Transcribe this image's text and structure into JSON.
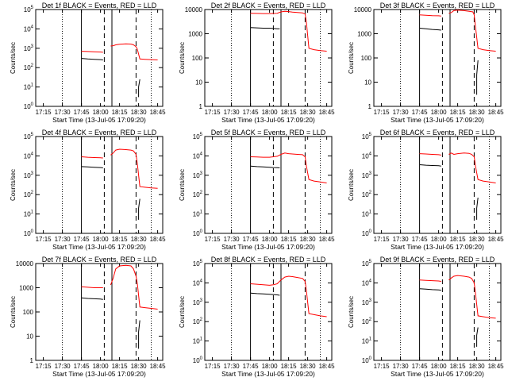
{
  "xlabel": "Start Time (13-Jul-05 17:09:20)",
  "ylabel": "Counts/sec",
  "x_ticks": [
    "17:15",
    "17:30",
    "17:45",
    "18:00",
    "18:15",
    "18:30",
    "18:45"
  ],
  "colors": {
    "events": "#000000",
    "lld": "#ff0000",
    "axes": "#000000"
  },
  "chart_data": [
    {
      "type": "line",
      "title": "Det 1f BLACK = Events, RED = LLD",
      "ylim": [
        1,
        100000
      ],
      "ytick_style": "exp",
      "y_ticks": [
        "10^0",
        "10^1",
        "10^2",
        "10^3",
        "10^4",
        "10^5"
      ],
      "markers": {
        "dotted": [
          "17:30",
          "18:40"
        ],
        "solid": [
          "17:45",
          "18:09"
        ],
        "dashed": [
          "18:03",
          "18:28"
        ]
      },
      "series": [
        {
          "role": "events",
          "x": [
            "17:45",
            "17:50",
            "17:55",
            "18:00",
            "18:02"
          ],
          "y": [
            300,
            280,
            270,
            260,
            250
          ]
        },
        {
          "role": "events",
          "x": [
            "18:30",
            "18:30",
            "18:31"
          ],
          "y": [
            3,
            10,
            25
          ]
        },
        {
          "role": "lld",
          "x": [
            "17:45",
            "17:50",
            "17:55",
            "18:00",
            "18:02"
          ],
          "y": [
            700,
            680,
            660,
            640,
            620
          ]
        },
        {
          "role": "lld",
          "x": [
            "18:08",
            "18:10",
            "18:12",
            "18:15",
            "18:20",
            "18:24",
            "18:26",
            "18:28",
            "18:29",
            "18:31",
            "18:35",
            "18:40",
            "18:45"
          ],
          "y": [
            1300,
            1350,
            1500,
            1600,
            1700,
            1650,
            1500,
            1200,
            900,
            280,
            270,
            260,
            250
          ]
        }
      ]
    },
    {
      "type": "line",
      "title": "Det 2f BLACK = Events, RED = LLD",
      "ylim": [
        1,
        10000
      ],
      "ytick_style": "plain",
      "y_ticks": [
        "1",
        "10",
        "100",
        "1000",
        "10000"
      ],
      "markers": {
        "dotted": [
          "17:30",
          "18:40"
        ],
        "solid": [
          "17:45",
          "18:09"
        ],
        "dashed": [
          "18:03",
          "18:28"
        ]
      },
      "series": [
        {
          "role": "events",
          "x": [
            "17:45",
            "17:50",
            "17:55",
            "18:00",
            "18:03",
            "18:06",
            "18:08"
          ],
          "y": [
            1800,
            1750,
            1700,
            1700,
            1650,
            1600,
            1600
          ]
        },
        {
          "role": "lld",
          "x": [
            "17:45",
            "17:50",
            "17:55",
            "18:00",
            "18:03",
            "18:06",
            "18:09",
            "18:12",
            "18:15",
            "18:18",
            "18:22",
            "18:26",
            "18:28",
            "18:29",
            "18:31",
            "18:35",
            "18:40",
            "18:45"
          ],
          "y": [
            7000,
            6900,
            6800,
            6800,
            6900,
            7000,
            8000,
            8500,
            8200,
            7800,
            7500,
            7300,
            6500,
            3000,
            250,
            220,
            200,
            190
          ]
        }
      ]
    },
    {
      "type": "line",
      "title": "Det 3f BLACK = Events, RED = LLD",
      "ylim": [
        1,
        10000
      ],
      "ytick_style": "plain",
      "y_ticks": [
        "1",
        "10",
        "100",
        "1000",
        "10000"
      ],
      "markers": {
        "dotted": [
          "17:30",
          "18:40"
        ],
        "solid": [
          "17:45",
          "18:09"
        ],
        "dashed": [
          "18:03",
          "18:28"
        ]
      },
      "series": [
        {
          "role": "events",
          "x": [
            "17:45",
            "17:50",
            "17:55",
            "18:00",
            "18:02"
          ],
          "y": [
            1700,
            1600,
            1500,
            1450,
            1400
          ]
        },
        {
          "role": "events",
          "x": [
            "18:30",
            "18:30",
            "18:31"
          ],
          "y": [
            3,
            20,
            80
          ]
        },
        {
          "role": "lld",
          "x": [
            "17:45",
            "17:50",
            "17:55",
            "18:00",
            "18:02"
          ],
          "y": [
            6000,
            5800,
            5600,
            5500,
            5400
          ]
        },
        {
          "role": "lld",
          "x": [
            "18:08",
            "18:10",
            "18:12",
            "18:15",
            "18:20",
            "18:24",
            "18:27",
            "18:28",
            "18:29",
            "18:31",
            "18:35",
            "18:40",
            "18:45"
          ],
          "y": [
            7000,
            7500,
            9000,
            9500,
            9000,
            8500,
            8000,
            6000,
            2000,
            250,
            220,
            200,
            190
          ]
        }
      ]
    },
    {
      "type": "line",
      "title": "Det 4f BLACK = Events, RED = LLD",
      "ylim": [
        1,
        100000
      ],
      "ytick_style": "exp",
      "y_ticks": [
        "10^0",
        "10^1",
        "10^2",
        "10^3",
        "10^4",
        "10^5"
      ],
      "markers": {
        "dotted": [
          "17:30",
          "18:40"
        ],
        "solid": [
          "17:45",
          "18:09"
        ],
        "dashed": [
          "18:03",
          "18:28"
        ]
      },
      "series": [
        {
          "role": "events",
          "x": [
            "17:45",
            "17:50",
            "17:55",
            "18:00",
            "18:02"
          ],
          "y": [
            2800,
            2700,
            2600,
            2500,
            2400
          ]
        },
        {
          "role": "events",
          "x": [
            "18:30",
            "18:30",
            "18:31"
          ],
          "y": [
            5,
            20,
            60
          ]
        },
        {
          "role": "lld",
          "x": [
            "17:45",
            "17:50",
            "17:55",
            "18:00",
            "18:02"
          ],
          "y": [
            9000,
            8500,
            8200,
            8000,
            7800
          ]
        },
        {
          "role": "lld",
          "x": [
            "18:08",
            "18:10",
            "18:12",
            "18:15",
            "18:20",
            "18:24",
            "18:26",
            "18:28",
            "18:29",
            "18:31",
            "18:35",
            "18:40",
            "18:45"
          ],
          "y": [
            11000,
            14000,
            20000,
            22000,
            21000,
            20000,
            18000,
            12000,
            4000,
            260,
            240,
            220,
            210
          ]
        }
      ]
    },
    {
      "type": "line",
      "title": "Det 5f BLACK = Events, RED = LLD",
      "ylim": [
        1,
        100000
      ],
      "ytick_style": "exp",
      "y_ticks": [
        "10^0",
        "10^1",
        "10^2",
        "10^3",
        "10^4",
        "10^5"
      ],
      "markers": {
        "dotted": [
          "17:30",
          "18:40"
        ],
        "solid": [
          "17:45",
          "18:09"
        ],
        "dashed": [
          "18:03",
          "18:28"
        ]
      },
      "series": [
        {
          "role": "events",
          "x": [
            "17:45",
            "17:50",
            "17:55",
            "18:00",
            "18:03",
            "18:06",
            "18:08"
          ],
          "y": [
            3000,
            2800,
            2700,
            2600,
            2500,
            2450,
            2400
          ]
        },
        {
          "role": "lld",
          "x": [
            "17:45",
            "17:50",
            "17:55",
            "18:00",
            "18:03",
            "18:06",
            "18:09",
            "18:12",
            "18:15",
            "18:18",
            "18:22",
            "18:26",
            "18:28",
            "18:29",
            "18:31",
            "18:35",
            "18:40",
            "18:45"
          ],
          "y": [
            9000,
            8800,
            8500,
            8500,
            9000,
            9500,
            12000,
            14000,
            13000,
            12500,
            12000,
            11500,
            9000,
            3000,
            600,
            500,
            450,
            400
          ]
        }
      ]
    },
    {
      "type": "line",
      "title": "Det 6f BLACK = Events, RED = LLD",
      "ylim": [
        1,
        100000
      ],
      "ytick_style": "exp",
      "y_ticks": [
        "10^0",
        "10^1",
        "10^2",
        "10^3",
        "10^4",
        "10^5"
      ],
      "markers": {
        "dotted": [
          "17:30",
          "18:40"
        ],
        "solid": [
          "17:45",
          "18:09"
        ],
        "dashed": [
          "18:03",
          "18:28"
        ]
      },
      "series": [
        {
          "role": "events",
          "x": [
            "17:45",
            "17:50",
            "17:55",
            "18:00",
            "18:02"
          ],
          "y": [
            3500,
            3300,
            3200,
            3100,
            3000
          ]
        },
        {
          "role": "events",
          "x": [
            "18:30",
            "18:30",
            "18:31"
          ],
          "y": [
            5,
            20,
            70
          ]
        },
        {
          "role": "lld",
          "x": [
            "17:45",
            "17:50",
            "17:55",
            "18:00",
            "18:02"
          ],
          "y": [
            13000,
            12500,
            12000,
            11500,
            11000
          ]
        },
        {
          "role": "lld",
          "x": [
            "18:08",
            "18:10",
            "18:12",
            "18:15",
            "18:20",
            "18:24",
            "18:26",
            "18:28",
            "18:29",
            "18:31",
            "18:35",
            "18:40",
            "18:45"
          ],
          "y": [
            12000,
            14000,
            12000,
            13000,
            14000,
            13500,
            12000,
            9000,
            3000,
            600,
            500,
            450,
            400
          ]
        }
      ]
    },
    {
      "type": "line",
      "title": "Det 7f BLACK = Events, RED = LLD",
      "ylim": [
        1,
        10000
      ],
      "ytick_style": "plain",
      "y_ticks": [
        "1",
        "10",
        "100",
        "1000",
        "10000"
      ],
      "markers": {
        "dotted": [
          "17:30",
          "18:40"
        ],
        "solid": [
          "17:45",
          "18:09"
        ],
        "dashed": [
          "18:03",
          "18:28"
        ]
      },
      "series": [
        {
          "role": "events",
          "x": [
            "17:45",
            "17:50",
            "17:55",
            "18:00",
            "18:02"
          ],
          "y": [
            380,
            360,
            350,
            340,
            330
          ]
        },
        {
          "role": "events",
          "x": [
            "18:30",
            "18:30",
            "18:31"
          ],
          "y": [
            3,
            15,
            45
          ]
        },
        {
          "role": "lld",
          "x": [
            "17:45",
            "17:50",
            "17:55",
            "18:00",
            "18:02"
          ],
          "y": [
            1100,
            1050,
            1000,
            1000,
            1000
          ]
        },
        {
          "role": "lld",
          "x": [
            "18:08",
            "18:10",
            "18:12",
            "18:15",
            "18:20",
            "18:24",
            "18:26",
            "18:28",
            "18:29",
            "18:31",
            "18:35",
            "18:40",
            "18:45"
          ],
          "y": [
            1300,
            2500,
            6000,
            8000,
            8500,
            8000,
            6000,
            3000,
            1500,
            160,
            150,
            140,
            130
          ]
        }
      ]
    },
    {
      "type": "line",
      "title": "Det 8f BLACK = Events, RED = LLD",
      "ylim": [
        1,
        100000
      ],
      "ytick_style": "exp",
      "y_ticks": [
        "10^0",
        "10^1",
        "10^2",
        "10^3",
        "10^4",
        "10^5"
      ],
      "markers": {
        "dotted": [
          "17:30",
          "18:40"
        ],
        "solid": [
          "17:45",
          "18:09"
        ],
        "dashed": [
          "18:03",
          "18:28"
        ]
      },
      "series": [
        {
          "role": "events",
          "x": [
            "17:45",
            "17:50",
            "17:55",
            "18:00",
            "18:03",
            "18:06",
            "18:08"
          ],
          "y": [
            3000,
            2800,
            2700,
            2600,
            2500,
            2400,
            2300
          ]
        },
        {
          "role": "lld",
          "x": [
            "17:45",
            "17:50",
            "17:55",
            "18:00",
            "18:03",
            "18:06",
            "18:09",
            "18:12",
            "18:15",
            "18:18",
            "18:22",
            "18:26",
            "18:28",
            "18:29",
            "18:31",
            "18:35",
            "18:40",
            "18:45"
          ],
          "y": [
            9000,
            8500,
            8000,
            7500,
            8000,
            9000,
            14000,
            20000,
            22000,
            21000,
            19000,
            17000,
            12000,
            4000,
            260,
            230,
            200,
            180
          ]
        }
      ]
    },
    {
      "type": "line",
      "title": "Det 9f BLACK = Events, RED = LLD",
      "ylim": [
        1,
        100000
      ],
      "ytick_style": "exp",
      "y_ticks": [
        "10^0",
        "10^1",
        "10^2",
        "10^3",
        "10^4",
        "10^5"
      ],
      "markers": {
        "dotted": [
          "17:30",
          "18:40"
        ],
        "solid": [
          "17:45",
          "18:09"
        ],
        "dashed": [
          "18:03",
          "18:28"
        ]
      },
      "series": [
        {
          "role": "events",
          "x": [
            "17:45",
            "17:50",
            "17:55",
            "18:00",
            "18:02"
          ],
          "y": [
            5000,
            4800,
            4500,
            4300,
            4200
          ]
        },
        {
          "role": "events",
          "x": [
            "18:30",
            "18:30",
            "18:31"
          ],
          "y": [
            5,
            20,
            50
          ]
        },
        {
          "role": "lld",
          "x": [
            "17:45",
            "17:50",
            "17:55",
            "18:00",
            "18:02"
          ],
          "y": [
            14000,
            13500,
            13000,
            12500,
            12000
          ]
        },
        {
          "role": "lld",
          "x": [
            "18:08",
            "18:10",
            "18:12",
            "18:15",
            "18:20",
            "18:24",
            "18:26",
            "18:28",
            "18:29",
            "18:31",
            "18:35",
            "18:40",
            "18:45"
          ],
          "y": [
            14000,
            18000,
            22000,
            24000,
            22000,
            20000,
            17000,
            10000,
            3000,
            200,
            180,
            160,
            150
          ]
        }
      ]
    }
  ]
}
